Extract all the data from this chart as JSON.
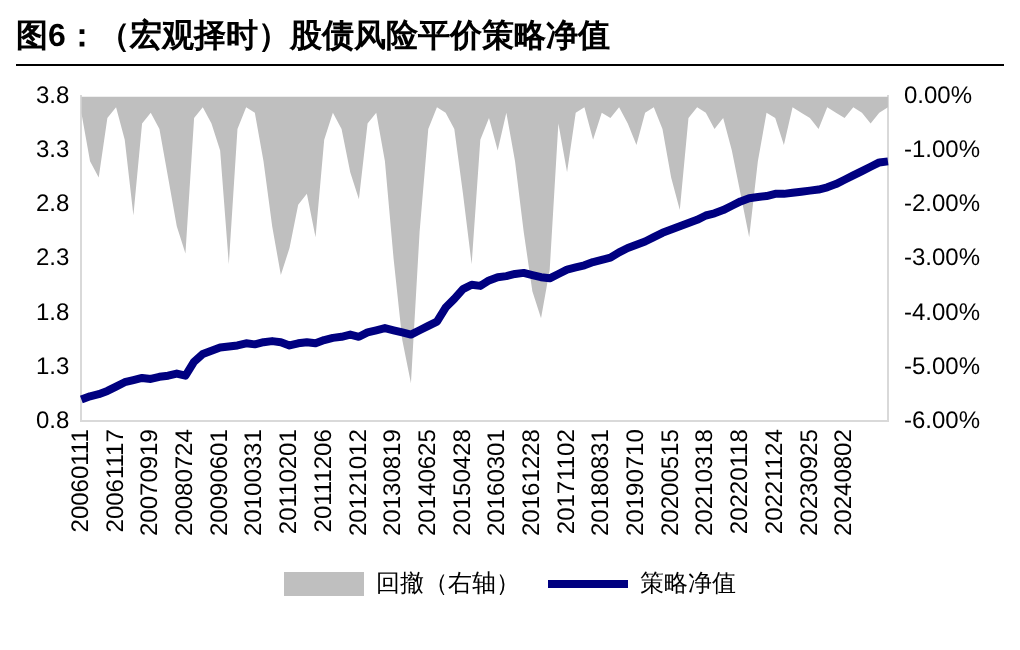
{
  "chart_data": {
    "type": "line",
    "title": "图6：（宏观择时）股债风险平价策略净值",
    "categories": [
      "20060111",
      null,
      null,
      null,
      "20061117",
      null,
      null,
      null,
      "20070919",
      null,
      null,
      null,
      "20080724",
      null,
      null,
      null,
      "20090601",
      null,
      null,
      null,
      "20100331",
      null,
      null,
      null,
      "20110201",
      null,
      null,
      null,
      "20111206",
      null,
      null,
      null,
      "20121012",
      null,
      null,
      null,
      "20130819",
      null,
      null,
      null,
      "20140625",
      null,
      null,
      null,
      "20150428",
      null,
      null,
      null,
      "20160301",
      null,
      null,
      null,
      "20161228",
      null,
      null,
      null,
      "20171102",
      null,
      null,
      null,
      "20180831",
      null,
      null,
      null,
      "20190710",
      null,
      null,
      null,
      "20200515",
      null,
      null,
      null,
      "20210318",
      null,
      null,
      null,
      "20220118",
      null,
      null,
      null,
      "20221124",
      null,
      null,
      null,
      "20230925",
      null,
      null,
      null,
      "20240802",
      null,
      null,
      null,
      null,
      null
    ],
    "series": [
      {
        "name": "回撤（右轴）",
        "type": "area",
        "axis": "y2",
        "color": "#bfbfbf",
        "values": [
          -0.3,
          -1.2,
          -1.5,
          -0.4,
          -0.2,
          -0.8,
          -2.2,
          -0.5,
          -0.3,
          -0.6,
          -1.5,
          -2.4,
          -2.9,
          -0.4,
          -0.2,
          -0.5,
          -1.0,
          -3.1,
          -0.6,
          -0.2,
          -0.3,
          -1.2,
          -2.4,
          -3.3,
          -2.8,
          -2.0,
          -1.8,
          -2.6,
          -0.8,
          -0.3,
          -0.6,
          -1.4,
          -1.9,
          -0.5,
          -0.3,
          -1.2,
          -3.0,
          -4.5,
          -5.3,
          -2.5,
          -0.6,
          -0.2,
          -0.3,
          -0.6,
          -1.8,
          -3.1,
          -0.8,
          -0.4,
          -1.0,
          -0.3,
          -1.2,
          -2.5,
          -3.6,
          -4.1,
          -3.2,
          -0.5,
          -1.4,
          -0.3,
          -0.2,
          -0.8,
          -0.3,
          -0.4,
          -0.2,
          -0.5,
          -0.9,
          -0.3,
          -0.2,
          -0.6,
          -1.5,
          -2.1,
          -0.4,
          -0.2,
          -0.3,
          -0.6,
          -0.4,
          -1.0,
          -1.8,
          -2.6,
          -1.2,
          -0.3,
          -0.4,
          -0.9,
          -0.2,
          -0.3,
          -0.4,
          -0.6,
          -0.2,
          -0.3,
          -0.4,
          -0.2,
          -0.3,
          -0.5,
          -0.3,
          -0.2
        ]
      },
      {
        "name": "策略净值",
        "type": "line",
        "color": "#000080",
        "values": [
          1.0,
          1.03,
          1.05,
          1.08,
          1.12,
          1.16,
          1.18,
          1.2,
          1.19,
          1.21,
          1.22,
          1.24,
          1.22,
          1.35,
          1.42,
          1.45,
          1.48,
          1.49,
          1.5,
          1.52,
          1.51,
          1.53,
          1.54,
          1.53,
          1.5,
          1.52,
          1.53,
          1.52,
          1.55,
          1.57,
          1.58,
          1.6,
          1.58,
          1.62,
          1.64,
          1.66,
          1.64,
          1.62,
          1.6,
          1.64,
          1.68,
          1.72,
          1.85,
          1.93,
          2.02,
          2.06,
          2.05,
          2.1,
          2.13,
          2.14,
          2.16,
          2.17,
          2.15,
          2.13,
          2.12,
          2.16,
          2.2,
          2.22,
          2.24,
          2.27,
          2.29,
          2.31,
          2.36,
          2.4,
          2.43,
          2.46,
          2.5,
          2.54,
          2.57,
          2.6,
          2.63,
          2.66,
          2.7,
          2.72,
          2.75,
          2.79,
          2.83,
          2.86,
          2.87,
          2.88,
          2.9,
          2.9,
          2.91,
          2.92,
          2.93,
          2.94,
          2.96,
          2.99,
          3.03,
          3.07,
          3.11,
          3.15,
          3.19,
          3.2
        ]
      }
    ],
    "ylim": [
      0.8,
      3.8
    ],
    "yticks": [
      0.8,
      1.3,
      1.8,
      2.3,
      2.8,
      3.3,
      3.8
    ],
    "y2lim": [
      -6,
      0
    ],
    "y2ticks": [
      {
        "value": -6,
        "label": "-6.00%"
      },
      {
        "value": -5,
        "label": "-5.00%"
      },
      {
        "value": -4,
        "label": "-4.00%"
      },
      {
        "value": -3,
        "label": "-3.00%"
      },
      {
        "value": -2,
        "label": "-2.00%"
      },
      {
        "value": -1,
        "label": "-1.00%"
      },
      {
        "value": 0,
        "label": "0.00%"
      }
    ],
    "grid": false,
    "legend": "bottom"
  }
}
